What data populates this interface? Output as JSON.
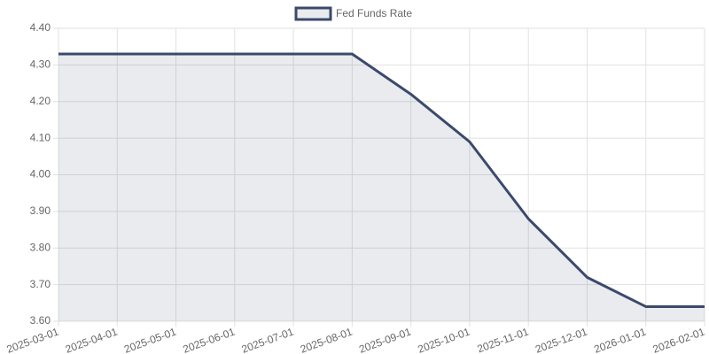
{
  "chart_data": {
    "type": "line",
    "categories": [
      "2025-03-01",
      "2025-04-01",
      "2025-05-01",
      "2025-06-01",
      "2025-07-01",
      "2025-08-01",
      "2025-09-01",
      "2025-10-01",
      "2025-11-01",
      "2025-12-01",
      "2026-01-01",
      "2026-02-01"
    ],
    "series": [
      {
        "name": "Fed Funds Rate",
        "color": "#3b4a6b",
        "fill": "rgba(59,74,107,0.11)",
        "values": [
          4.33,
          4.33,
          4.33,
          4.33,
          4.33,
          4.33,
          4.22,
          4.09,
          3.88,
          3.72,
          3.64,
          3.64
        ]
      }
    ],
    "ylim": [
      3.6,
      4.4
    ],
    "yticks": [
      {
        "value": 3.6,
        "label": "3.60"
      },
      {
        "value": 3.7,
        "label": "3.70"
      },
      {
        "value": 3.8,
        "label": "3.80"
      },
      {
        "value": 3.9,
        "label": "3.90"
      },
      {
        "value": 4.0,
        "label": "4.00"
      },
      {
        "value": 4.1,
        "label": "4.10"
      },
      {
        "value": 4.2,
        "label": "4.20"
      },
      {
        "value": 4.3,
        "label": "4.30"
      },
      {
        "value": 4.4,
        "label": "4.40"
      }
    ],
    "grid": true,
    "legend": "top"
  }
}
